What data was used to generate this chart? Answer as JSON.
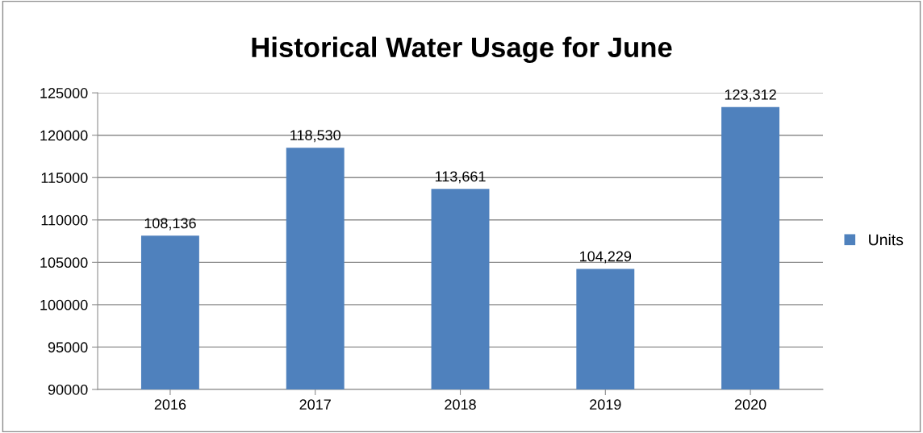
{
  "chart_data": {
    "type": "bar",
    "title": "Historical Water Usage for June",
    "categories": [
      "2016",
      "2017",
      "2018",
      "2019",
      "2020"
    ],
    "series": [
      {
        "name": "Units",
        "color": "#4f81bd",
        "values": [
          108136,
          118530,
          113661,
          104229,
          123312
        ],
        "value_labels": [
          "108,136",
          "118,530",
          "113,661",
          "104,229",
          "123,312"
        ]
      }
    ],
    "ylim": [
      90000,
      125000
    ],
    "yticks": [
      90000,
      95000,
      100000,
      105000,
      110000,
      115000,
      120000,
      125000
    ],
    "grid": "y",
    "legend": "right"
  }
}
